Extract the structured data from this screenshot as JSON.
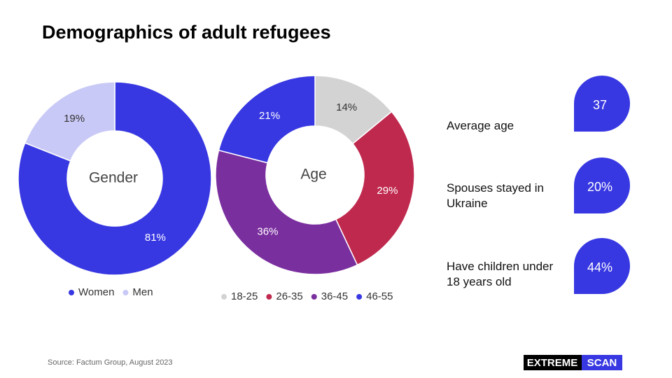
{
  "title": "Demographics of adult refugees",
  "chart_data": [
    {
      "type": "pie",
      "center_label": "Gender",
      "categories": [
        "Women",
        "Men"
      ],
      "values": [
        81,
        19
      ],
      "value_labels": [
        "81%",
        "19%"
      ],
      "colors": [
        "#3838e2",
        "#c9c9f7"
      ],
      "label_colors": [
        "#ffffff",
        "#333333"
      ]
    },
    {
      "type": "pie",
      "center_label": "Age",
      "categories": [
        "18-25",
        "26-35",
        "36-45",
        "46-55"
      ],
      "values": [
        14,
        29,
        36,
        21
      ],
      "value_labels": [
        "14%",
        "29%",
        "36%",
        "21%"
      ],
      "colors": [
        "#d3d3d3",
        "#c0294e",
        "#7a2f9f",
        "#3838e2"
      ],
      "label_colors": [
        "#333333",
        "#ffffff",
        "#ffffff",
        "#ffffff"
      ]
    }
  ],
  "stats": [
    {
      "label": "Average age",
      "value": "37"
    },
    {
      "label": "Spouses stayed in Ukraine",
      "value": "20%"
    },
    {
      "label": "Have children under 18 years old",
      "value": "44%"
    }
  ],
  "source": "Source: Factum Group, August 2023",
  "logo": [
    "EXTREME",
    "SCAN"
  ]
}
